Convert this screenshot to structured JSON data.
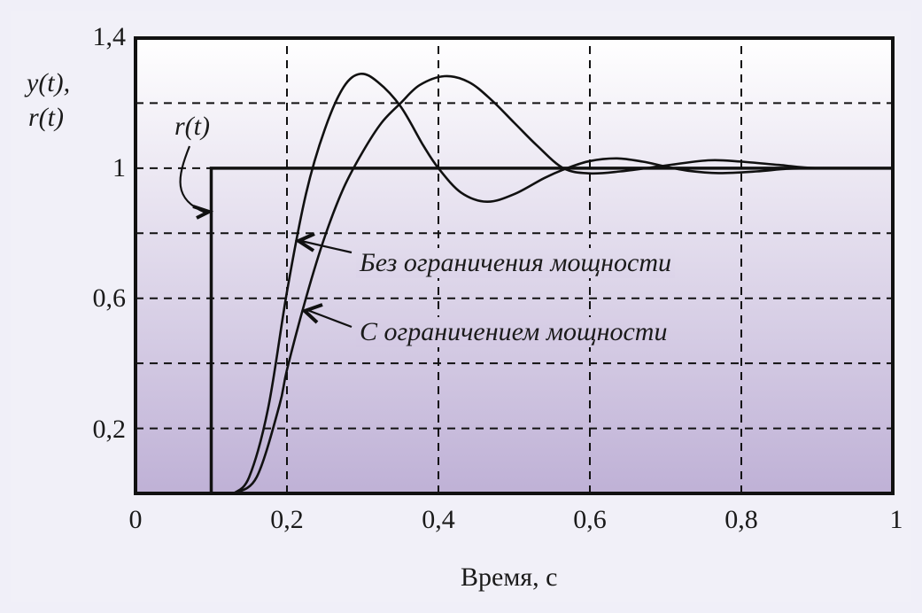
{
  "chart_data": {
    "type": "line",
    "title": "",
    "xlabel": "Время, с",
    "ylabel": "y(t), r(t)",
    "xlim": [
      0,
      1
    ],
    "ylim": [
      0,
      1.4
    ],
    "grid": true,
    "x_ticks": [
      "0",
      "0,2",
      "0,4",
      "0,6",
      "0,8",
      "1"
    ],
    "y_ticks": [
      "0,2",
      "0,6",
      "1",
      "1,4"
    ],
    "y_grid_values": [
      0.2,
      0.4,
      0.6,
      0.8,
      1.0,
      1.2,
      1.4
    ],
    "x_grid_values": [
      0.2,
      0.4,
      0.6,
      0.8
    ],
    "series": [
      {
        "name": "r(t)",
        "points": [
          [
            0.1,
            0
          ],
          [
            0.1,
            1.0
          ],
          [
            1.0,
            1.0
          ]
        ]
      },
      {
        "name": "Без ограничения мощности",
        "points": [
          [
            0.13,
            0
          ],
          [
            0.15,
            0.05
          ],
          [
            0.175,
            0.26
          ],
          [
            0.2,
            0.62
          ],
          [
            0.225,
            0.92
          ],
          [
            0.25,
            1.12
          ],
          [
            0.275,
            1.25
          ],
          [
            0.297,
            1.29
          ],
          [
            0.32,
            1.265
          ],
          [
            0.35,
            1.19
          ],
          [
            0.38,
            1.07
          ],
          [
            0.4,
            1.0
          ],
          [
            0.43,
            0.925
          ],
          [
            0.464,
            0.897
          ],
          [
            0.5,
            0.92
          ],
          [
            0.54,
            0.97
          ],
          [
            0.57,
            1.0
          ],
          [
            0.6,
            1.022
          ],
          [
            0.636,
            1.03
          ],
          [
            0.67,
            1.02
          ],
          [
            0.7,
            1.005
          ],
          [
            0.73,
            0.992
          ],
          [
            0.77,
            0.985
          ],
          [
            0.82,
            0.99
          ],
          [
            0.86,
            0.998
          ],
          [
            0.9,
            1.0
          ],
          [
            1.0,
            1.0
          ]
        ]
      },
      {
        "name": "С ограничением мощности",
        "points": [
          [
            0.13,
            0
          ],
          [
            0.16,
            0.05
          ],
          [
            0.19,
            0.27
          ],
          [
            0.2,
            0.38
          ],
          [
            0.225,
            0.6
          ],
          [
            0.25,
            0.79
          ],
          [
            0.275,
            0.94
          ],
          [
            0.3,
            1.05
          ],
          [
            0.325,
            1.14
          ],
          [
            0.35,
            1.2
          ],
          [
            0.375,
            1.255
          ],
          [
            0.408,
            1.283
          ],
          [
            0.44,
            1.265
          ],
          [
            0.47,
            1.21
          ],
          [
            0.5,
            1.14
          ],
          [
            0.53,
            1.07
          ],
          [
            0.565,
            1.0
          ],
          [
            0.6,
            0.984
          ],
          [
            0.64,
            0.99
          ],
          [
            0.69,
            1.005
          ],
          [
            0.756,
            1.024
          ],
          [
            0.8,
            1.02
          ],
          [
            0.85,
            1.01
          ],
          [
            0.9,
            1.0
          ],
          [
            1.0,
            1.0
          ]
        ]
      }
    ],
    "annotations": [
      {
        "text": "r(t)",
        "target_series": "r(t)"
      },
      {
        "text": "Без ограничения мощности",
        "target_series": "Без ограничения мощности"
      },
      {
        "text": "С ограничением мощности",
        "target_series": "С ограничением мощности"
      }
    ]
  },
  "labels": {
    "ylabel_line1": "y(t),",
    "ylabel_line2": "r(t)",
    "xlabel": "Время, с",
    "ann_r": "r(t)",
    "ann_no_limit": "Без ограничения мощности",
    "ann_limit": "С ограничением мощности",
    "ytick_14": "1,4",
    "ytick_1": "1",
    "ytick_06": "0,6",
    "ytick_02": "0,2",
    "xtick_0": "0",
    "xtick_02": "0,2",
    "xtick_04": "0,4",
    "xtick_06": "0,6",
    "xtick_08": "0,8",
    "xtick_1": "1"
  },
  "colors": {
    "background": "#f1f0f8",
    "plot_top": "#ffffff",
    "plot_bottom": "#bfb1d6",
    "line": "#111111"
  }
}
